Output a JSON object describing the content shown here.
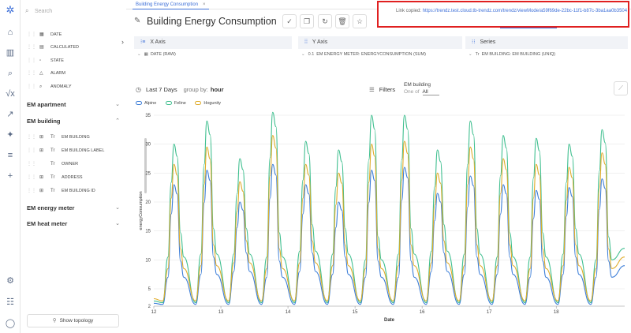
{
  "sidebar": {
    "search_placeholder": "Search",
    "fields_top": [
      {
        "type": "ft-date",
        "label": "DATE"
      },
      {
        "type": "ft-calc",
        "label": "CALCULATED"
      },
      {
        "type": "ft-state",
        "label": "STATE"
      },
      {
        "type": "ft-alarm",
        "label": "ALARM"
      },
      {
        "type": "ft-anomaly",
        "label": "ANOMALY"
      }
    ],
    "groups": [
      {
        "label": "EM apartment",
        "expanded": false
      },
      {
        "label": "EM building",
        "expanded": true
      },
      {
        "label": "EM energy meter",
        "expanded": false
      },
      {
        "label": "EM heat meter",
        "expanded": false
      }
    ],
    "em_building_fields": [
      {
        "type": "Tr",
        "label": "EM BUILDING"
      },
      {
        "type": "Tr",
        "label": "EM BUILDING LABEL"
      },
      {
        "type": "Tr",
        "label": "OWNER"
      },
      {
        "type": "Tr",
        "label": "ADDRESS"
      },
      {
        "type": "Tr",
        "label": "EM BUILDING ID"
      }
    ],
    "show_topology": "Show topology"
  },
  "tab": {
    "label": "Building Energy Consumption"
  },
  "header": {
    "title": "Building Energy Consumption"
  },
  "toast": {
    "prefix": "Link copied:",
    "link": "https://trendz.test.cloud.tb-trendz.com/trendz/viewMode/a59f69de-22bc-11f1-b87c-3ba1aa0b3504"
  },
  "panels": {
    "x": {
      "title": "X Axis",
      "value": "DATE (RAW)"
    },
    "y": {
      "title": "Y Axis",
      "value": "EM ENERGY METER: ENERGYCONSUMPTION (SUM)"
    },
    "series": {
      "title": "Series",
      "value": "EM BUILDING: EM BUILDING (UNIQ)"
    }
  },
  "controls": {
    "range": "Last 7 Days",
    "group_by_label": "group by:",
    "group_by_value": "hour",
    "filters": "Filters",
    "filter_name": "EM building",
    "filter_op": "One of",
    "filter_value": "All"
  },
  "colors": {
    "accent": "#3d6fd8",
    "toast_border": "#e02020"
  },
  "chart_data": {
    "type": "line",
    "xlabel": "Date",
    "ylabel": "energyConsumption",
    "ylim": [
      2,
      35
    ],
    "y_ticks": [
      2,
      5,
      10,
      15,
      20,
      25,
      30,
      35
    ],
    "x_ticks": [
      "12",
      "13",
      "14",
      "15",
      "16",
      "17",
      "18"
    ],
    "series": [
      {
        "name": "Alpine",
        "color": "#3b7dd8",
        "peaks": [
          23,
          25.5,
          20,
          26.5,
          23,
          20,
          25.5,
          26,
          21.5,
          24.5,
          23,
          22,
          22.5,
          24
        ],
        "troughs": [
          7,
          7.5,
          8,
          7,
          8,
          7.5,
          7,
          7,
          8,
          7.5,
          7.5,
          7,
          7.5,
          7
        ]
      },
      {
        "name": "Feline",
        "color": "#3fbf8f",
        "peaks": [
          30,
          34,
          27.5,
          35.5,
          30.5,
          29,
          35,
          35,
          29,
          34,
          31.5,
          31,
          30,
          32.5
        ],
        "troughs": [
          10.5,
          11,
          11,
          10.5,
          11.5,
          11,
          10,
          11,
          11.5,
          11,
          10.5,
          10.5,
          11,
          10
        ]
      },
      {
        "name": "Hogunity",
        "color": "#e0ac2a",
        "peaks": [
          26.5,
          29.5,
          23.5,
          31.5,
          26.5,
          25,
          30,
          30.5,
          25,
          29.5,
          27.5,
          26.5,
          26,
          28.5
        ],
        "troughs": [
          8.5,
          9,
          9.5,
          8.5,
          9.5,
          9,
          8.5,
          9,
          9.5,
          9,
          9,
          8.5,
          9,
          8.5
        ]
      }
    ]
  }
}
